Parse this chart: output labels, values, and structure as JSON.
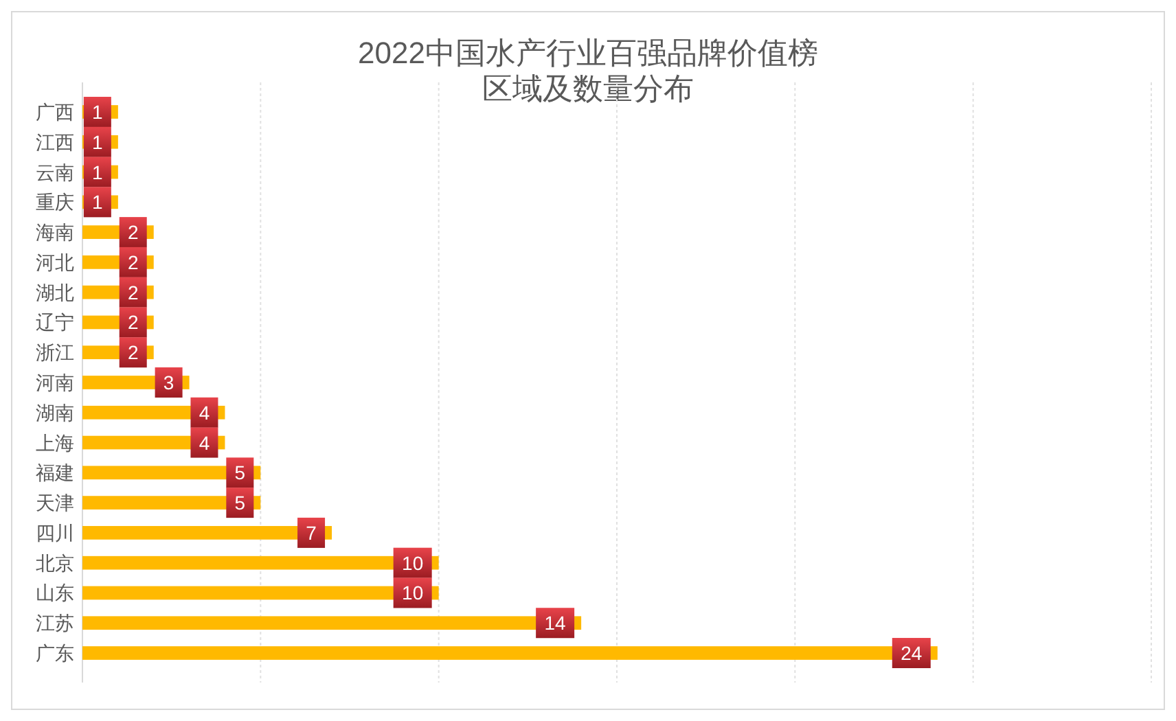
{
  "chart_data": {
    "type": "bar",
    "orientation": "horizontal",
    "title": "2022中国水产行业百强品牌价值榜",
    "subtitle": "区域及数量分布",
    "categories": [
      "广西",
      "江西",
      "云南",
      "重庆",
      "海南",
      "河北",
      "湖北",
      "辽宁",
      "浙江",
      "河南",
      "湖南",
      "上海",
      "福建",
      "天津",
      "四川",
      "北京",
      "山东",
      "江苏",
      "广东"
    ],
    "values": [
      1,
      1,
      1,
      1,
      2,
      2,
      2,
      2,
      2,
      3,
      4,
      4,
      5,
      5,
      7,
      10,
      10,
      14,
      24
    ],
    "color": "#ffb900",
    "data_labels": true,
    "grid": "x",
    "tick_labels": "y"
  }
}
